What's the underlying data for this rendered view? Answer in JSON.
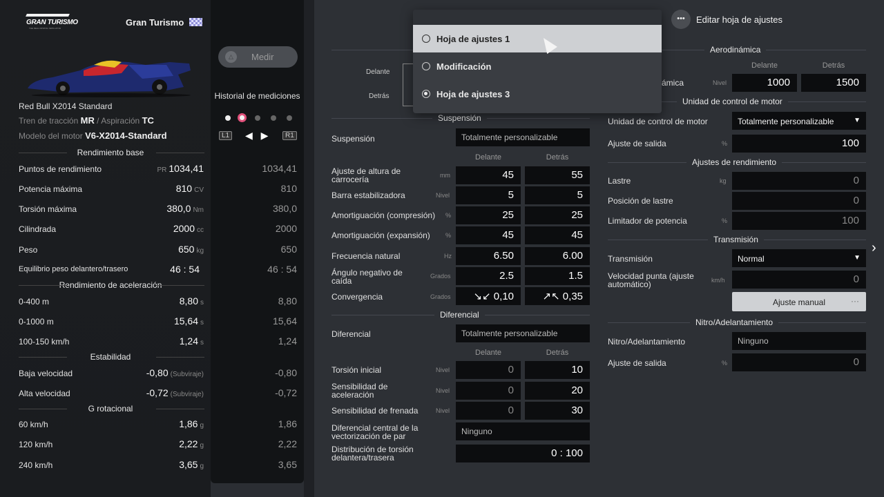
{
  "brand": {
    "logo_text": "GRAN TURISMO",
    "logo_sub": "THE REAL DRIVING SIMULATOR",
    "title": "Gran Turismo"
  },
  "car": {
    "name": "Red Bull X2014 Standard",
    "drivetrain_label": "Tren de tracción",
    "drivetrain": "MR",
    "separator": "/",
    "aspiration_label": "Aspiración",
    "aspiration": "TC",
    "engine_label": "Modelo del motor",
    "engine": "V6-X2014-Standard"
  },
  "measure": {
    "button_label": "Medir",
    "button_icon": "triangle-icon",
    "history_label": "Historial de mediciones",
    "l1": "L1",
    "r1": "R1",
    "arrows": "◀ ▶"
  },
  "base_perf": {
    "title": "Rendimiento base",
    "rows": [
      {
        "label": "Puntos de rendimiento",
        "prefix": "PR",
        "value": "1034,41",
        "unit": "",
        "measured": "1034,41"
      },
      {
        "label": "Potencia máxima",
        "value": "810",
        "unit": "CV",
        "measured": "810"
      },
      {
        "label": "Torsión máxima",
        "value": "380,0",
        "unit": "Nm",
        "measured": "380,0"
      },
      {
        "label": "Cilindrada",
        "value": "2000",
        "unit": "cc",
        "measured": "2000"
      },
      {
        "label": "Peso",
        "value": "650",
        "unit": "kg",
        "measured": "650"
      },
      {
        "label": "Equilibrio peso delantero/trasero",
        "value": "46 : 54",
        "unit": "",
        "measured": "46 : 54"
      }
    ]
  },
  "accel": {
    "title": "Rendimiento de aceleración",
    "rows": [
      {
        "label": "0-400 m",
        "value": "8,80",
        "unit": "s",
        "measured": "8,80"
      },
      {
        "label": "0-1000 m",
        "value": "15,64",
        "unit": "s",
        "measured": "15,64"
      },
      {
        "label": "100-150 km/h",
        "value": "1,24",
        "unit": "s",
        "measured": "1,24"
      }
    ]
  },
  "stability": {
    "title": "Estabilidad",
    "rows": [
      {
        "label": "Baja velocidad",
        "value": "-0,80",
        "unit": "(Subviraje)",
        "measured": "-0,80"
      },
      {
        "label": "Alta velocidad",
        "value": "-0,72",
        "unit": "(Subviraje)",
        "measured": "-0,72"
      }
    ]
  },
  "g_rot": {
    "title": "G rotacional",
    "rows": [
      {
        "label": "60 km/h",
        "value": "1,86",
        "unit": "g",
        "measured": "1,86"
      },
      {
        "label": "120 km/h",
        "value": "2,22",
        "unit": "g",
        "measured": "2,22"
      },
      {
        "label": "240 km/h",
        "value": "3,65",
        "unit": "g",
        "measured": "3,65"
      }
    ]
  },
  "menu": {
    "items": [
      {
        "label": "Hoja de ajustes 1",
        "selected": true
      },
      {
        "label": "Modificación",
        "selected": false
      },
      {
        "label": "Hoja de ajustes 3",
        "checked": true
      }
    ]
  },
  "edit_sheet": {
    "label": "Editar hoja de ajustes",
    "icon": "more-icon"
  },
  "diagram": {
    "front": "Delante",
    "rear": "Detrás"
  },
  "suspension": {
    "title": "Suspensión",
    "type_label": "Suspensión",
    "type_value": "Totalmente personalizable",
    "col_front": "Delante",
    "col_rear": "Detrás",
    "rows": [
      {
        "label": "Ajuste de altura de carrocería",
        "unit": "mm",
        "front": "45",
        "rear": "55"
      },
      {
        "label": "Barra estabilizadora",
        "unit": "Nivel",
        "front": "5",
        "rear": "5"
      },
      {
        "label": "Amortiguación (compresión)",
        "unit": "%",
        "front": "25",
        "rear": "25"
      },
      {
        "label": "Amortiguación (expansión)",
        "unit": "%",
        "front": "45",
        "rear": "45"
      },
      {
        "label": "Frecuencia natural",
        "unit": "Hz",
        "front": "6.50",
        "rear": "6.00"
      },
      {
        "label": "Ángulo negativo de caída",
        "unit": "Grados",
        "front": "2.5",
        "rear": "1.5"
      },
      {
        "label": "Convergencia",
        "unit": "Grados",
        "front": "↘↙ 0,10",
        "rear": "↗↖ 0,35"
      }
    ]
  },
  "differential": {
    "title": "Diferencial",
    "type_label": "Diferencial",
    "type_value": "Totalmente personalizable",
    "col_front": "Delante",
    "col_rear": "Detrás",
    "rows": [
      {
        "label": "Torsión inicial",
        "unit": "Nivel",
        "front": "0",
        "rear": "10"
      },
      {
        "label": "Sensibilidad de aceleración",
        "unit": "Nivel",
        "front": "0",
        "rear": "20"
      },
      {
        "label": "Sensibilidad de frenada",
        "unit": "Nivel",
        "front": "0",
        "rear": "30"
      }
    ],
    "center_label": "Diferencial central de la vectorización de par",
    "center_value": "Ninguno",
    "dist_label": "Distribución de torsión delantera/trasera",
    "dist_value": "0 : 100"
  },
  "aero": {
    "title": "Aerodinámica",
    "col_front": "Delante",
    "col_rear": "Detrás",
    "row_label": "ámica",
    "unit": "Nivel",
    "front": "1000",
    "rear": "1500"
  },
  "ecu": {
    "title": "Unidad de control de motor",
    "ecu_label": "Unidad de control de motor",
    "ecu_value": "Totalmente personalizable",
    "output_label": "Ajuste de salida",
    "output_unit": "%",
    "output_value": "100"
  },
  "perf_adj": {
    "title": "Ajustes de rendimiento",
    "rows": [
      {
        "label": "Lastre",
        "unit": "kg",
        "value": "0"
      },
      {
        "label": "Posición de lastre",
        "unit": "",
        "value": "0"
      },
      {
        "label": "Limitador de potencia",
        "unit": "%",
        "value": "100"
      }
    ]
  },
  "transmission": {
    "title": "Transmisión",
    "label": "Transmisión",
    "value": "Normal",
    "top_speed_label": "Velocidad punta (ajuste automático)",
    "top_speed_unit": "km/h",
    "top_speed_value": "0",
    "manual_button": "Ajuste manual",
    "manual_more": "···"
  },
  "nitro": {
    "title": "Nitro/Adelantamiento",
    "label": "Nitro/Adelantamiento",
    "value": "Ninguno",
    "output_label": "Ajuste de salida",
    "output_unit": "%",
    "output_value": "0"
  }
}
